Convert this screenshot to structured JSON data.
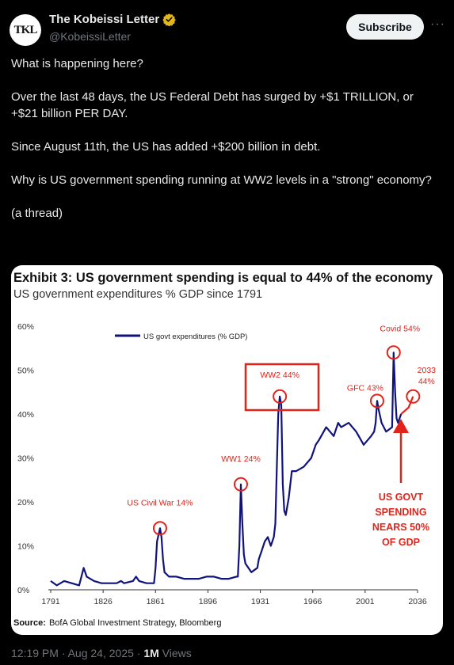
{
  "author": {
    "name": "The Kobeissi Letter",
    "handle": "@KobeissiLetter",
    "avatar_text": "TKL"
  },
  "subscribe_label": "Subscribe",
  "more_label": "···",
  "tweet_lines": [
    "What is happening here?",
    "",
    "Over the last 48 days, the US Federal Debt has surged by +$1 TRILLION, or +$21 billion PER DAY.",
    "",
    "Since August 11th, the US has added +$200 billion in debt.",
    "",
    "Why is US government spending running at WW2 levels in a \"strong\" economy?",
    "",
    "(a thread)"
  ],
  "chart_data": {
    "type": "line",
    "title": "Exhibit 3: US government spending is equal to 44% of the economy",
    "subtitle": "US government expenditures % GDP since 1791",
    "legend": "US govt expenditures (% GDP)",
    "legend_position": "top-left",
    "source_label": "Source:",
    "source_text": "BofA Global Investment Strategy, Bloomberg",
    "x_ticks": [
      "1791",
      "1826",
      "1861",
      "1896",
      "1931",
      "1966",
      "2001",
      "2036"
    ],
    "y_ticks": [
      "0%",
      "10%",
      "20%",
      "30%",
      "40%",
      "50%",
      "60%"
    ],
    "xlim": [
      1791,
      2036
    ],
    "ylim": [
      0,
      60
    ],
    "series": [
      {
        "name": "US govt expenditures (% GDP)",
        "x": [
          1791,
          1795,
          1800,
          1805,
          1810,
          1813,
          1815,
          1820,
          1825,
          1830,
          1835,
          1838,
          1840,
          1846,
          1848,
          1850,
          1855,
          1860,
          1861,
          1862,
          1864,
          1865,
          1866,
          1867,
          1870,
          1875,
          1880,
          1885,
          1890,
          1895,
          1900,
          1905,
          1910,
          1915,
          1916,
          1917,
          1918,
          1919,
          1920,
          1921,
          1925,
          1929,
          1930,
          1932,
          1934,
          1936,
          1938,
          1940,
          1941,
          1942,
          1943,
          1944,
          1945,
          1946,
          1947,
          1948,
          1950,
          1952,
          1955,
          1960,
          1965,
          1968,
          1970,
          1975,
          1980,
          1983,
          1985,
          1990,
          1995,
          2000,
          2005,
          2007,
          2008,
          2009,
          2010,
          2012,
          2015,
          2019,
          2020,
          2021,
          2022,
          2023,
          2024,
          2025
        ],
        "y": [
          2,
          1,
          2,
          1.5,
          1,
          5,
          3,
          2,
          1.5,
          1.5,
          1.5,
          2,
          1.5,
          2,
          3,
          2,
          1.5,
          1.5,
          5,
          11,
          14,
          12,
          7,
          4,
          3,
          3,
          2.5,
          2.5,
          2.5,
          3,
          3,
          2.5,
          2.5,
          3,
          3,
          10,
          24,
          15,
          8,
          6,
          4,
          5,
          7,
          9,
          11,
          12,
          10,
          12,
          15,
          28,
          40,
          44,
          42,
          24,
          18,
          17,
          21,
          27,
          27,
          28,
          30,
          33,
          34,
          37,
          35,
          38,
          37,
          38,
          36,
          33,
          35,
          36,
          38,
          43,
          41,
          38,
          36,
          37,
          54,
          45,
          39,
          38,
          39,
          40
        ]
      }
    ],
    "projection": {
      "x": [
        2025,
        2030,
        2033
      ],
      "y": [
        40,
        41.5,
        44
      ]
    },
    "annotations": [
      {
        "label": "US Civil War 14%",
        "x": 1864,
        "y": 14
      },
      {
        "label": "WW1 24%",
        "x": 1918,
        "y": 24
      },
      {
        "label": "WW2 44%",
        "x": 1944,
        "y": 44
      },
      {
        "label": "GFC 43%",
        "x": 2009,
        "y": 43
      },
      {
        "label": "Covid 54%",
        "x": 2020,
        "y": 54
      },
      {
        "label": "2033",
        "label2": "44%",
        "x": 2033,
        "y": 44
      }
    ],
    "callout_lines": [
      "US GOVT",
      "SPENDING",
      "NEARS 50%",
      "OF GDP"
    ],
    "colors": {
      "line": "#10147a",
      "annotation": "#e2231a"
    }
  },
  "footer": {
    "time": "12:19 PM · Aug 24, 2025 · ",
    "views_count": "1M",
    "views_label": " Views"
  }
}
